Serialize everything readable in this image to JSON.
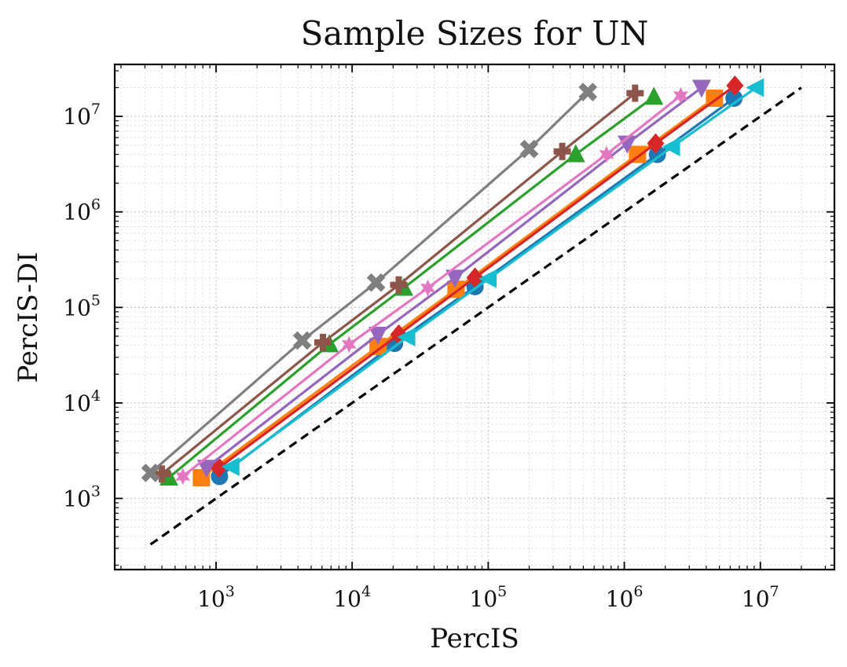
{
  "chart_data": {
    "type": "line",
    "title": "Sample Sizes for UN",
    "xlabel": "PercIS",
    "ylabel": "PercIS-DI",
    "xscale": "log",
    "yscale": "log",
    "xlim": [
      180,
      35000000
    ],
    "ylim": [
      180,
      35000000
    ],
    "x_ticks": [
      {
        "value": 1000,
        "base": "10",
        "exp": "3"
      },
      {
        "value": 10000,
        "base": "10",
        "exp": "4"
      },
      {
        "value": 100000,
        "base": "10",
        "exp": "5"
      },
      {
        "value": 1000000,
        "base": "10",
        "exp": "6"
      },
      {
        "value": 10000000,
        "base": "10",
        "exp": "7"
      }
    ],
    "y_ticks": [
      {
        "value": 1000,
        "base": "10",
        "exp": "3"
      },
      {
        "value": 10000,
        "base": "10",
        "exp": "4"
      },
      {
        "value": 100000,
        "base": "10",
        "exp": "5"
      },
      {
        "value": 1000000,
        "base": "10",
        "exp": "6"
      },
      {
        "value": 10000000,
        "base": "10",
        "exp": "7"
      }
    ],
    "grid": true,
    "reference_line": {
      "style": "dashed",
      "color": "#000000",
      "x": [
        330,
        20000000
      ],
      "y": [
        330,
        20000000
      ]
    },
    "series": [
      {
        "color": "#1f77b4",
        "marker": "circle",
        "x": [
          1060,
          20500,
          80000,
          1750000,
          6400000
        ],
        "y": [
          1700,
          42000,
          165000,
          4000000,
          15500000
        ]
      },
      {
        "color": "#ff7f0e",
        "marker": "square",
        "x": [
          780,
          15500,
          58000,
          1250000,
          4600000
        ],
        "y": [
          1650,
          39000,
          155000,
          4000000,
          15500000
        ]
      },
      {
        "color": "#2ca02c",
        "marker": "triangle-up",
        "x": [
          450,
          6800,
          24000,
          440000,
          1650000
        ],
        "y": [
          1650,
          41000,
          160000,
          4000000,
          16000000
        ]
      },
      {
        "color": "#d62728",
        "marker": "diamond",
        "x": [
          1050,
          22000,
          80000,
          1700000,
          6500000
        ],
        "y": [
          2100,
          52000,
          205000,
          5200000,
          21000000
        ]
      },
      {
        "color": "#9467bd",
        "marker": "triangle-down",
        "x": [
          850,
          15500,
          57000,
          1050000,
          3700000
        ],
        "y": [
          2100,
          52000,
          205000,
          5200000,
          20000000
        ]
      },
      {
        "color": "#8c564b",
        "marker": "plus",
        "x": [
          400,
          6100,
          22000,
          350000,
          1200000
        ],
        "y": [
          1800,
          43000,
          172000,
          4300000,
          17500000
        ]
      },
      {
        "color": "#e377c2",
        "marker": "star",
        "x": [
          570,
          9500,
          36000,
          740000,
          2600000
        ],
        "y": [
          1700,
          41000,
          160000,
          4000000,
          16500000
        ]
      },
      {
        "color": "#7f7f7f",
        "marker": "x",
        "x": [
          330,
          4300,
          15000,
          200000,
          540000
        ],
        "y": [
          1850,
          45000,
          182000,
          4550000,
          18000000
        ]
      },
      {
        "color": "#17becf",
        "marker": "triangle-left",
        "x": [
          1300,
          25500,
          101000,
          2250000,
          9300000
        ],
        "y": [
          2150,
          49000,
          200000,
          4800000,
          20000000
        ]
      }
    ]
  }
}
